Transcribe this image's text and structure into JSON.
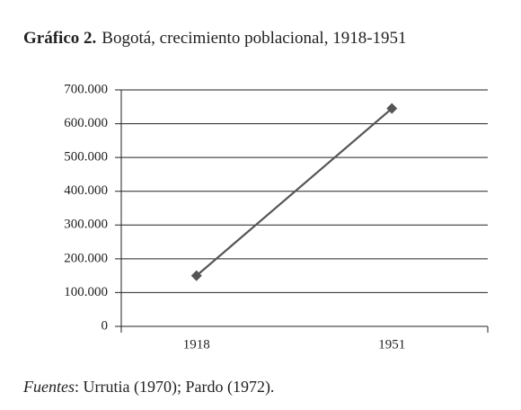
{
  "chart_data": {
    "type": "line",
    "title_number": "Gráfico 2.",
    "title": "Bogotá, crecimiento poblacional, 1918-1951",
    "source_label": "Fuentes",
    "source": ": Urrutia (1970); Pardo (1972).",
    "categories": [
      "1918",
      "1951"
    ],
    "series": [
      {
        "color": "#555555",
        "values": [
          150000,
          645000
        ]
      }
    ],
    "ylim": [
      0,
      700000
    ],
    "yticks": [
      0,
      {
        "value": 100000,
        "label": "100.000"
      },
      {
        "value": 200000,
        "label": "200.000"
      },
      {
        "value": 300000,
        "label": "300.000"
      },
      {
        "value": 400000,
        "label": "400.000"
      },
      {
        "value": 500000,
        "label": "500.000"
      },
      {
        "value": 600000,
        "label": "600.000"
      },
      {
        "value": 700000,
        "label": "700.000"
      }
    ],
    "grid": true
  }
}
